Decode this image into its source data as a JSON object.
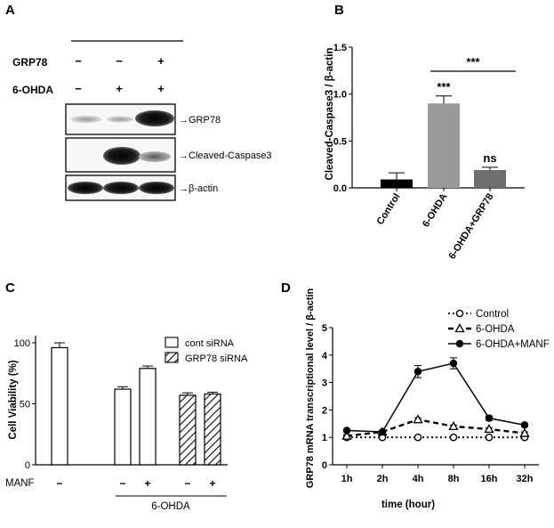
{
  "panels": {
    "A": {
      "label": "A",
      "rows": [
        {
          "name": "GRP78",
          "signs": [
            "−",
            "−",
            "+"
          ]
        },
        {
          "name": "6-OHDA",
          "signs": [
            "−",
            "+",
            "+"
          ]
        }
      ],
      "blots": [
        "GRP78",
        "Cleaved-Caspase3",
        "β-actin"
      ],
      "arrow": "→"
    },
    "B": {
      "label": "B",
      "significance": {
        "bar2": "***",
        "bar3": "ns",
        "bracket": "***"
      }
    },
    "C": {
      "label": "C",
      "legend": [
        "cont siRNA",
        "GRP78 siRNA"
      ],
      "manf_label": "MANF",
      "manf_signs": [
        "−",
        "−",
        "+",
        "−",
        "+"
      ],
      "group_label": "6-OHDA"
    },
    "D": {
      "label": "D"
    }
  },
  "colors": {
    "bar_control": "#000000",
    "bar_6ohda": "#999999",
    "bar_6ohda_grp78": "#6e6e6e",
    "hatch": "#000000"
  },
  "chart_data": [
    {
      "id": "B",
      "type": "bar",
      "ylabel": "Cleaved-Caspase3 / β-actin",
      "categories": [
        "Control",
        "6-OHDA",
        "6-OHDA+GRP78"
      ],
      "values": [
        0.09,
        0.9,
        0.19
      ],
      "errors": [
        0.07,
        0.08,
        0.03
      ],
      "ylim": [
        0,
        1.5
      ],
      "yticks": [
        "0.0",
        "0.5",
        "1.0",
        "1.5"
      ],
      "ytick_values": [
        0,
        0.5,
        1.0,
        1.5
      ]
    },
    {
      "id": "C",
      "type": "bar",
      "ylabel": "Cell Viability (%)",
      "series": [
        {
          "name": "cont siRNA",
          "values": [
            96,
            62,
            79
          ],
          "errors": [
            4,
            2,
            2
          ]
        },
        {
          "name": "GRP78 siRNA",
          "values": [
            57,
            58
          ],
          "errors": [
            2,
            1.5
          ]
        }
      ],
      "ylim": [
        0,
        100
      ],
      "yticks": [
        "0",
        "50",
        "100"
      ],
      "ytick_values": [
        0,
        50,
        100
      ]
    },
    {
      "id": "D",
      "type": "line",
      "ylabel": "GRP78 mRNA transcriptional level / β-actin",
      "xlabel": "time (hour)",
      "categories": [
        "1h",
        "2h",
        "4h",
        "8h",
        "16h",
        "32h"
      ],
      "series": [
        {
          "name": "Control",
          "values": [
            1.0,
            1.0,
            1.0,
            1.0,
            1.0,
            1.0
          ],
          "errors": [
            0.03,
            0.03,
            0.03,
            0.03,
            0.03,
            0.03
          ]
        },
        {
          "name": "6-OHDA",
          "values": [
            1.05,
            1.2,
            1.65,
            1.4,
            1.3,
            1.15
          ],
          "errors": [
            0.05,
            0.05,
            0.06,
            0.05,
            0.05,
            0.05
          ]
        },
        {
          "name": "6-OHDA+MANF",
          "values": [
            1.25,
            1.2,
            3.4,
            3.7,
            1.7,
            1.45
          ],
          "errors": [
            0.05,
            0.05,
            0.22,
            0.2,
            0.08,
            0.06
          ]
        }
      ],
      "ylim": [
        0,
        5
      ],
      "yticks": [
        "0",
        "1",
        "2",
        "3",
        "4",
        "5"
      ],
      "ytick_values": [
        0,
        1,
        2,
        3,
        4,
        5
      ]
    }
  ]
}
